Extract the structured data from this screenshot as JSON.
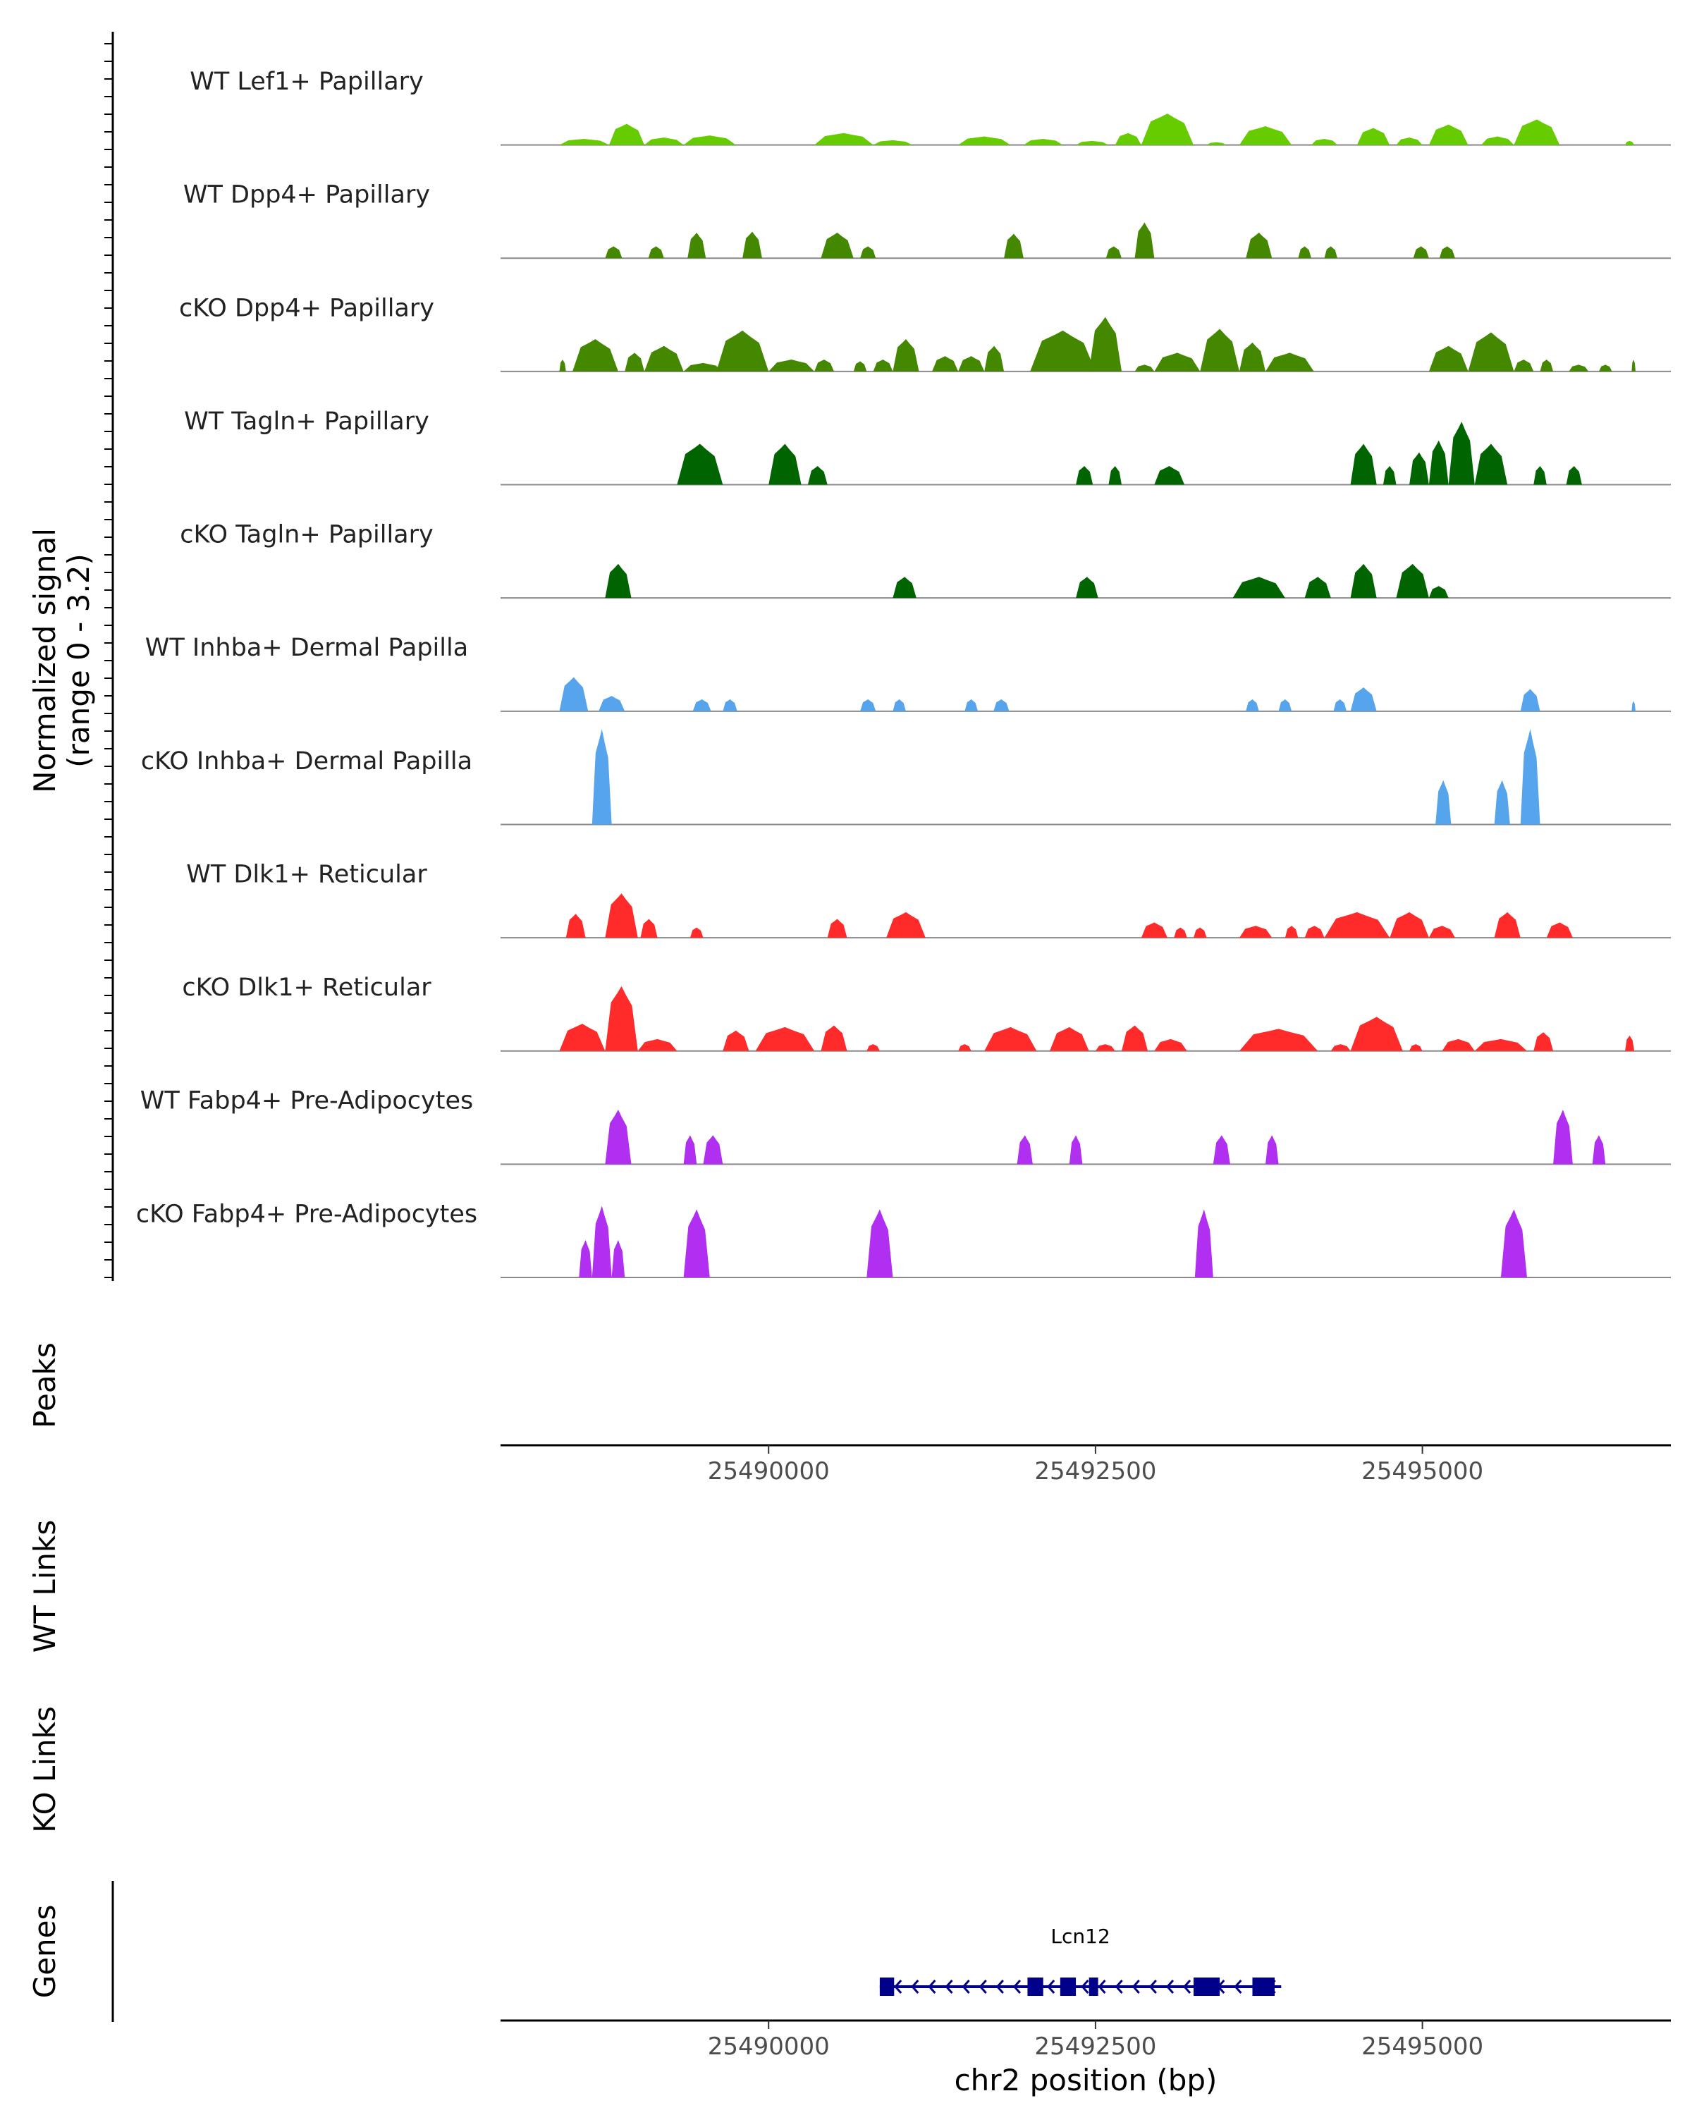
{
  "chart_data": {
    "type": "area",
    "title": "",
    "xlabel": "chr2 position (bp)",
    "x_range": [
      25487950,
      25496900
    ],
    "x_ticks": [
      25490000,
      25492500,
      25495000
    ],
    "x_tick_labels": [
      "25490000",
      "25492500",
      "25495000"
    ],
    "signal_axis_label": [
      "Normalized signal",
      "(range 0 - 3.2)"
    ],
    "signal_range": [
      0,
      3.2
    ],
    "tracks": [
      {
        "name": "WT Lef1+ Papillary",
        "color": "#66cc00",
        "peaks": [
          [
            25488400,
            25488780,
            0.18
          ],
          [
            25488780,
            25489050,
            0.62
          ],
          [
            25489050,
            25489350,
            0.22
          ],
          [
            25489350,
            25489750,
            0.28
          ],
          [
            25490350,
            25490800,
            0.35
          ],
          [
            25490800,
            25491100,
            0.14
          ],
          [
            25491450,
            25491850,
            0.25
          ],
          [
            25491950,
            25492250,
            0.18
          ],
          [
            25492350,
            25492600,
            0.12
          ],
          [
            25492650,
            25492850,
            0.35
          ],
          [
            25492850,
            25493250,
            0.92
          ],
          [
            25493350,
            25493500,
            0.08
          ],
          [
            25493600,
            25494000,
            0.55
          ],
          [
            25494150,
            25494350,
            0.18
          ],
          [
            25494500,
            25494750,
            0.5
          ],
          [
            25494800,
            25495000,
            0.22
          ],
          [
            25495050,
            25495350,
            0.6
          ],
          [
            25495450,
            25495700,
            0.25
          ],
          [
            25495700,
            25496050,
            0.75
          ],
          [
            25496550,
            25496620,
            0.12
          ]
        ]
      },
      {
        "name": "WT Dpp4+ Papillary",
        "color": "#448800",
        "peaks": [
          [
            25488750,
            25488880,
            0.35
          ],
          [
            25489080,
            25489200,
            0.35
          ],
          [
            25489380,
            25489520,
            0.75
          ],
          [
            25489800,
            25489950,
            0.78
          ],
          [
            25490400,
            25490650,
            0.75
          ],
          [
            25490700,
            25490820,
            0.35
          ],
          [
            25491800,
            25491950,
            0.72
          ],
          [
            25492580,
            25492700,
            0.35
          ],
          [
            25492800,
            25492950,
            1.05
          ],
          [
            25493650,
            25493850,
            0.75
          ],
          [
            25494050,
            25494150,
            0.35
          ],
          [
            25494250,
            25494350,
            0.35
          ],
          [
            25494930,
            25495050,
            0.35
          ],
          [
            25495130,
            25495250,
            0.35
          ]
        ]
      },
      {
        "name": "cKO Dpp4+ Papillary",
        "color": "#448800",
        "peaks": [
          [
            25488400,
            25488450,
            0.35
          ],
          [
            25488500,
            25488850,
            0.95
          ],
          [
            25488900,
            25489050,
            0.55
          ],
          [
            25489050,
            25489350,
            0.75
          ],
          [
            25489350,
            25489650,
            0.25
          ],
          [
            25489600,
            25490000,
            1.2
          ],
          [
            25490000,
            25490350,
            0.35
          ],
          [
            25490350,
            25490500,
            0.35
          ],
          [
            25490650,
            25490750,
            0.3
          ],
          [
            25490800,
            25490950,
            0.35
          ],
          [
            25490950,
            25491150,
            0.95
          ],
          [
            25491250,
            25491450,
            0.45
          ],
          [
            25491450,
            25491650,
            0.45
          ],
          [
            25491650,
            25491800,
            0.75
          ],
          [
            25492000,
            25492500,
            1.2
          ],
          [
            25492450,
            25492700,
            1.6
          ],
          [
            25492800,
            25492950,
            0.2
          ],
          [
            25492950,
            25493300,
            0.55
          ],
          [
            25493300,
            25493600,
            1.25
          ],
          [
            25493600,
            25493800,
            0.85
          ],
          [
            25493800,
            25494170,
            0.55
          ],
          [
            25495050,
            25495350,
            0.75
          ],
          [
            25495350,
            25495700,
            1.15
          ],
          [
            25495700,
            25495850,
            0.35
          ],
          [
            25495900,
            25496000,
            0.35
          ],
          [
            25496120,
            25496270,
            0.2
          ],
          [
            25496350,
            25496450,
            0.2
          ],
          [
            25496600,
            25496630,
            0.35
          ]
        ]
      },
      {
        "name": "WT Tagln+ Papillary",
        "color": "#006400",
        "peaks": [
          [
            25489300,
            25489650,
            1.2
          ],
          [
            25490000,
            25490250,
            1.2
          ],
          [
            25490300,
            25490450,
            0.55
          ],
          [
            25492350,
            25492480,
            0.55
          ],
          [
            25492600,
            25492700,
            0.55
          ],
          [
            25492950,
            25493180,
            0.55
          ],
          [
            25494450,
            25494650,
            1.2
          ],
          [
            25494700,
            25494800,
            0.55
          ],
          [
            25494900,
            25495050,
            0.95
          ],
          [
            25495050,
            25495200,
            1.3
          ],
          [
            25495200,
            25495400,
            1.85
          ],
          [
            25495400,
            25495650,
            1.2
          ],
          [
            25495850,
            25495950,
            0.55
          ],
          [
            25496100,
            25496220,
            0.55
          ]
        ]
      },
      {
        "name": "cKO Tagln+ Papillary",
        "color": "#006400",
        "peaks": [
          [
            25488750,
            25488950,
            1.0
          ],
          [
            25490950,
            25491130,
            0.62
          ],
          [
            25492350,
            25492520,
            0.62
          ],
          [
            25493550,
            25493950,
            0.62
          ],
          [
            25494100,
            25494300,
            0.62
          ],
          [
            25494450,
            25494650,
            1.0
          ],
          [
            25494800,
            25495050,
            1.0
          ],
          [
            25495050,
            25495200,
            0.35
          ]
        ]
      },
      {
        "name": "WT Inhba+ Dermal Papilla",
        "color": "#56a5ec",
        "peaks": [
          [
            25488400,
            25488620,
            1.0
          ],
          [
            25488700,
            25488900,
            0.45
          ],
          [
            25489420,
            25489560,
            0.35
          ],
          [
            25489650,
            25489760,
            0.35
          ],
          [
            25490700,
            25490820,
            0.35
          ],
          [
            25490950,
            25491050,
            0.35
          ],
          [
            25491500,
            25491600,
            0.35
          ],
          [
            25491720,
            25491840,
            0.35
          ],
          [
            25493650,
            25493750,
            0.35
          ],
          [
            25493900,
            25494000,
            0.35
          ],
          [
            25494320,
            25494420,
            0.35
          ],
          [
            25494450,
            25494650,
            0.7
          ],
          [
            25495750,
            25495900,
            0.65
          ],
          [
            25496600,
            25496630,
            0.3
          ]
        ]
      },
      {
        "name": "cKO Inhba+ Dermal Papilla",
        "color": "#56a5ec",
        "peaks": [
          [
            25488650,
            25488800,
            2.8
          ],
          [
            25495100,
            25495220,
            1.3
          ],
          [
            25495550,
            25495670,
            1.3
          ],
          [
            25495750,
            25495900,
            2.8
          ]
        ]
      },
      {
        "name": "WT Dlk1+ Reticular",
        "color": "#ff2a2a",
        "peaks": [
          [
            25488450,
            25488600,
            0.7
          ],
          [
            25488750,
            25489000,
            1.3
          ],
          [
            25489020,
            25489150,
            0.55
          ],
          [
            25489400,
            25489500,
            0.3
          ],
          [
            25490450,
            25490600,
            0.55
          ],
          [
            25490900,
            25491200,
            0.75
          ],
          [
            25492850,
            25493050,
            0.45
          ],
          [
            25493100,
            25493200,
            0.3
          ],
          [
            25493250,
            25493350,
            0.3
          ],
          [
            25493600,
            25493850,
            0.35
          ],
          [
            25493950,
            25494050,
            0.35
          ],
          [
            25494100,
            25494250,
            0.35
          ],
          [
            25494250,
            25494750,
            0.75
          ],
          [
            25494750,
            25495050,
            0.75
          ],
          [
            25495050,
            25495250,
            0.35
          ],
          [
            25495550,
            25495750,
            0.75
          ],
          [
            25495950,
            25496150,
            0.45
          ]
        ]
      },
      {
        "name": "cKO Dlk1+ Reticular",
        "color": "#ff2a2a",
        "peaks": [
          [
            25488400,
            25488750,
            0.8
          ],
          [
            25488750,
            25489000,
            1.9
          ],
          [
            25489000,
            25489300,
            0.35
          ],
          [
            25489650,
            25489850,
            0.6
          ],
          [
            25489900,
            25490350,
            0.7
          ],
          [
            25490400,
            25490600,
            0.75
          ],
          [
            25490750,
            25490850,
            0.2
          ],
          [
            25491450,
            25491550,
            0.2
          ],
          [
            25491650,
            25492050,
            0.7
          ],
          [
            25492150,
            25492450,
            0.7
          ],
          [
            25492500,
            25492650,
            0.2
          ],
          [
            25492700,
            25492900,
            0.75
          ],
          [
            25492950,
            25493200,
            0.35
          ],
          [
            25493600,
            25494200,
            0.65
          ],
          [
            25494300,
            25494450,
            0.2
          ],
          [
            25494450,
            25494850,
            1.0
          ],
          [
            25494900,
            25495000,
            0.2
          ],
          [
            25495150,
            25495400,
            0.35
          ],
          [
            25495400,
            25495800,
            0.35
          ],
          [
            25495850,
            25496000,
            0.55
          ],
          [
            25496550,
            25496620,
            0.45
          ]
        ]
      },
      {
        "name": "WT Fabp4+ Pre-Adipocytes",
        "color": "#b02ff0",
        "peaks": [
          [
            25488750,
            25488950,
            1.6
          ],
          [
            25489350,
            25489450,
            0.85
          ],
          [
            25489500,
            25489650,
            0.85
          ],
          [
            25491900,
            25492020,
            0.85
          ],
          [
            25492300,
            25492400,
            0.85
          ],
          [
            25493400,
            25493530,
            0.85
          ],
          [
            25493800,
            25493900,
            0.85
          ],
          [
            25496000,
            25496150,
            1.6
          ],
          [
            25496300,
            25496400,
            0.85
          ]
        ]
      },
      {
        "name": "cKO Fabp4+ Pre-Adipocytes",
        "color": "#b02ff0",
        "peaks": [
          [
            25488550,
            25488650,
            1.1
          ],
          [
            25488650,
            25488800,
            2.1
          ],
          [
            25488800,
            25488900,
            1.1
          ],
          [
            25489350,
            25489550,
            2.0
          ],
          [
            25490750,
            25490950,
            2.0
          ],
          [
            25493260,
            25493400,
            2.0
          ],
          [
            25495600,
            25495800,
            2.0
          ]
        ]
      }
    ],
    "panels": [
      "Peaks",
      "WT Links",
      "KO Links",
      "Genes"
    ],
    "genes": [
      {
        "name": "Lcn12",
        "strand": "-",
        "color": "#00008b",
        "start": 25490850,
        "end": 25493920,
        "exons": [
          [
            25490850,
            25490960
          ],
          [
            25491980,
            25492100
          ],
          [
            25492230,
            25492350
          ],
          [
            25492450,
            25492520
          ],
          [
            25493250,
            25493450
          ],
          [
            25493700,
            25493870
          ]
        ]
      }
    ]
  }
}
